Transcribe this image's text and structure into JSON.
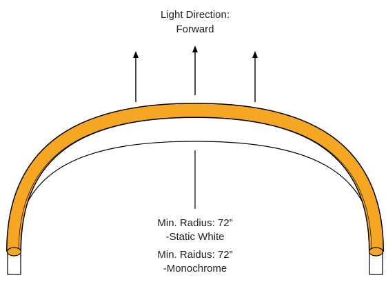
{
  "title": {
    "line1": "Light Direction:",
    "line2": "Forward"
  },
  "radius_labels": [
    {
      "line1": "Min. Radius: 72”",
      "line2": "-Static White"
    },
    {
      "line1": "Min. Raidus: 72”",
      "line2": "-Monochrome"
    }
  ],
  "colors": {
    "strip": "#f5a623",
    "outline": "#000000",
    "background": "#ffffff"
  },
  "arrow_count": 3
}
